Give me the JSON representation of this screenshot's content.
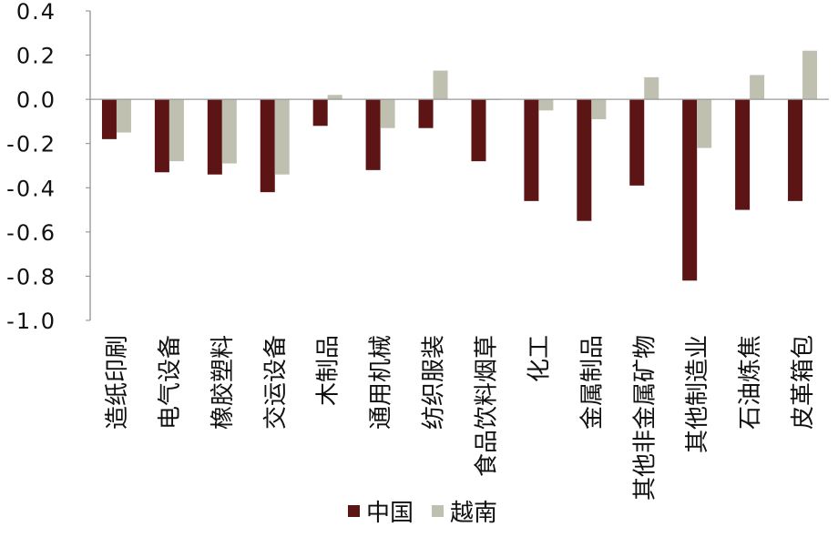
{
  "chart_data": {
    "type": "bar",
    "title": "",
    "xlabel": "",
    "ylabel": "",
    "ylim": [
      -1.0,
      0.4
    ],
    "yticks": [
      0.4,
      0.2,
      0.0,
      -0.2,
      -0.4,
      -0.6,
      -0.8,
      -1.0
    ],
    "ytick_labels": [
      "0.4",
      "0.2",
      "0.0",
      "-0.2",
      "-0.4",
      "-0.6",
      "-0.8",
      "-1.0"
    ],
    "grid": false,
    "legend_position": "bottom-center",
    "categories": [
      "造纸印刷",
      "电气设备",
      "橡胶塑料",
      "交运设备",
      "木制品",
      "通用机械",
      "纺织服装",
      "食品饮料烟草",
      "化工",
      "金属制品",
      "其他非金属矿物",
      "其他制造业",
      "石油炼焦",
      "皮革箱包"
    ],
    "series": [
      {
        "name": "中国",
        "color": "#5c1414",
        "values": [
          -0.18,
          -0.33,
          -0.34,
          -0.42,
          -0.12,
          -0.32,
          -0.13,
          -0.28,
          -0.46,
          -0.55,
          -0.39,
          -0.82,
          -0.5,
          -0.46
        ]
      },
      {
        "name": "越南",
        "color": "#bfc0b0",
        "values": [
          -0.15,
          -0.28,
          -0.29,
          -0.34,
          0.02,
          -0.13,
          0.13,
          0.0,
          -0.05,
          -0.09,
          0.1,
          -0.22,
          0.11,
          0.22
        ]
      }
    ]
  }
}
